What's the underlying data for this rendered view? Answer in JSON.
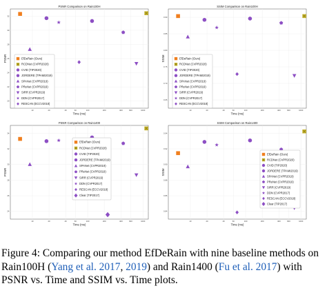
{
  "figure": {
    "caption": {
      "p1": "Figure 4: Comparing our method EfDeRain with nine baseline methods on Rain100H (",
      "c1": "Yang et al. 2017",
      "p2": ", ",
      "c2": "2019",
      "p3": ") and Rain1400 (",
      "c3": "Fu et al. 2017",
      "p4": ") with PSNR vs. Time and SSIM vs. Time plots."
    }
  },
  "chart_data": [
    {
      "type": "scatter",
      "title": "PSNR Comparison on Rain100H",
      "xlabel": "Time (ms)",
      "ylabel": "PSNR",
      "x_scale": "log",
      "legend_position": "lower-left",
      "x_ticks": [
        "10",
        "20",
        "40",
        "60",
        "100",
        "200",
        "400",
        "600",
        "1000"
      ],
      "y_ticks": [
        "20",
        "22",
        "24",
        "26",
        "28",
        "30",
        "32"
      ],
      "ylim": [
        19,
        33
      ],
      "series": [
        {
          "name": "EfDeRain (Ours)",
          "color": "#f07f1f",
          "marker": "square",
          "x": 6,
          "y": 32.3
        },
        {
          "name": "RCDNet (CVPR2020)",
          "color": "#c5b42f",
          "marker": "x-square",
          "x": 1150,
          "y": 32.4
        },
        {
          "name": "CVID (TIP2020)",
          "color": "#8d4fc4",
          "marker": "circle",
          "x": 18,
          "y": 31.7
        },
        {
          "name": "JORDERE (TPAMI2019)",
          "color": "#8d4fc4",
          "marker": "circle",
          "x": 120,
          "y": 31.3
        },
        {
          "name": "SPANet (CVPR2019)",
          "color": "#8d4fc4",
          "marker": "triangle",
          "x": 9,
          "y": 27.3
        },
        {
          "name": "PReNet (CVPR2019)",
          "color": "#8d4fc4",
          "marker": "pentagon",
          "x": 440,
          "y": 29.7
        },
        {
          "name": "SIRR (CVPR2019)",
          "color": "#8d4fc4",
          "marker": "triangle-down",
          "x": 760,
          "y": 25.3
        },
        {
          "name": "DDN (CVPR2017)",
          "color": "#8d4fc4",
          "marker": "star",
          "x": 30,
          "y": 31.1
        },
        {
          "name": "RESCAN (ECCV2018)",
          "color": "#8d4fc4",
          "marker": "diamond",
          "x": 70,
          "y": 25.5
        }
      ]
    },
    {
      "type": "scatter",
      "title": "SSIM Comparison on Rain100H",
      "xlabel": "Time (ms)",
      "ylabel": "SSIM",
      "x_scale": "log",
      "legend_position": "lower-left",
      "x_ticks": [
        "10",
        "20",
        "40",
        "60",
        "100",
        "200",
        "400",
        "600",
        "1000"
      ],
      "y_ticks": [
        "0.65",
        "0.70",
        "0.75",
        "0.80",
        "0.85",
        "0.90"
      ],
      "ylim": [
        0.6,
        0.92
      ],
      "series": [
        {
          "name": "EfDeRain (Ours)",
          "color": "#f07f1f",
          "marker": "square",
          "x": 6,
          "y": 0.897
        },
        {
          "name": "RCDNet (CVPR2020)",
          "color": "#c5b42f",
          "marker": "x-square",
          "x": 1150,
          "y": 0.897
        },
        {
          "name": "CVID (TIP2020)",
          "color": "#8d4fc4",
          "marker": "circle",
          "x": 18,
          "y": 0.885
        },
        {
          "name": "JORDERE (TPAMI2019)",
          "color": "#8d4fc4",
          "marker": "circle",
          "x": 120,
          "y": 0.889
        },
        {
          "name": "SPANet (CVPR2019)",
          "color": "#8d4fc4",
          "marker": "triangle",
          "x": 9,
          "y": 0.83
        },
        {
          "name": "PReNet (CVPR2019)",
          "color": "#8d4fc4",
          "marker": "pentagon",
          "x": 440,
          "y": 0.875
        },
        {
          "name": "SIRR (CVPR2019)",
          "color": "#8d4fc4",
          "marker": "triangle-down",
          "x": 760,
          "y": 0.705
        },
        {
          "name": "DDN (CVPR2017)",
          "color": "#8d4fc4",
          "marker": "star",
          "x": 30,
          "y": 0.86
        },
        {
          "name": "RESCAN (ECCV2018)",
          "color": "#8d4fc4",
          "marker": "diamond",
          "x": 70,
          "y": 0.71
        }
      ]
    },
    {
      "type": "scatter",
      "title": "PSNR Comparison on Rain1400",
      "xlabel": "Time (ms)",
      "ylabel": "PSNR",
      "x_scale": "log",
      "legend_position": "center",
      "x_ticks": [
        "10",
        "20",
        "40",
        "60",
        "100",
        "200",
        "400",
        "600",
        "1000"
      ],
      "y_ticks": [
        "24",
        "26",
        "28",
        "30",
        "32",
        "34"
      ],
      "ylim": [
        22.5,
        35
      ],
      "series": [
        {
          "name": "EfDeRain (Ours)",
          "color": "#f07f1f",
          "marker": "square",
          "x": 6,
          "y": 33.2
        },
        {
          "name": "RCDNet (CVPR2020)",
          "color": "#c5b42f",
          "marker": "x-square",
          "x": 1150,
          "y": 34.6
        },
        {
          "name": "CVID (TIP2020)",
          "color": "#8d4fc4",
          "marker": "circle",
          "x": 18,
          "y": 32.9
        },
        {
          "name": "JORDERE (TPAMI2019)",
          "color": "#8d4fc4",
          "marker": "circle",
          "x": 120,
          "y": 33.4
        },
        {
          "name": "SPANet (CVPR2019)",
          "color": "#8d4fc4",
          "marker": "triangle",
          "x": 9,
          "y": 29.8
        },
        {
          "name": "PReNet (CVPR2019)",
          "color": "#8d4fc4",
          "marker": "pentagon",
          "x": 440,
          "y": 32.6
        },
        {
          "name": "SIRR (CVPR2019)",
          "color": "#8d4fc4",
          "marker": "triangle-down",
          "x": 760,
          "y": 28.4
        },
        {
          "name": "DDN (CVPR2017)",
          "color": "#8d4fc4",
          "marker": "star",
          "x": 30,
          "y": 33.0
        },
        {
          "name": "RESCAN (ECCV2018)",
          "color": "#8d4fc4",
          "marker": "diamond",
          "x": 70,
          "y": 27.3
        },
        {
          "name": "Clear (TIP2017)",
          "color": "#8d4fc4",
          "marker": "big-diamond",
          "x": 230,
          "y": 23.1
        }
      ]
    },
    {
      "type": "scatter",
      "title": "SSIM Comparison on Rain1400",
      "xlabel": "Time (ms)",
      "ylabel": "SSIM",
      "x_scale": "log",
      "legend_position": "upper-right",
      "x_ticks": [
        "10",
        "20",
        "40",
        "60",
        "100",
        "200",
        "400",
        "600",
        "1000"
      ],
      "y_ticks": [
        "0.84",
        "0.86",
        "0.88",
        "0.90",
        "0.92",
        "0.94"
      ],
      "ylim": [
        0.825,
        0.95
      ],
      "series": [
        {
          "name": "EfDeRain (Ours)",
          "color": "#f07f1f",
          "marker": "square",
          "x": 6,
          "y": 0.913
        },
        {
          "name": "RCDNet (CVPR2020)",
          "color": "#c5b42f",
          "marker": "x-square",
          "x": 1150,
          "y": 0.942
        },
        {
          "name": "CVID (TIP2020)",
          "color": "#8d4fc4",
          "marker": "circle",
          "x": 18,
          "y": 0.928
        },
        {
          "name": "JORDERE (TPAMI2019)",
          "color": "#8d4fc4",
          "marker": "circle",
          "x": 120,
          "y": 0.93
        },
        {
          "name": "SPANet (CVPR2019)",
          "color": "#8d4fc4",
          "marker": "triangle",
          "x": 9,
          "y": 0.895
        },
        {
          "name": "PReNet (CVPR2019)",
          "color": "#8d4fc4",
          "marker": "pentagon",
          "x": 440,
          "y": 0.918
        },
        {
          "name": "SIRR (CVPR2019)",
          "color": "#8d4fc4",
          "marker": "triangle-down",
          "x": 760,
          "y": 0.84
        },
        {
          "name": "DDN (CVPR2017)",
          "color": "#8d4fc4",
          "marker": "star",
          "x": 30,
          "y": 0.924
        },
        {
          "name": "RESCAN (ECCV2018)",
          "color": "#8d4fc4",
          "marker": "diamond",
          "x": 70,
          "y": 0.834
        },
        {
          "name": "Clear (TIP2017)",
          "color": "#8d4fc4",
          "marker": "big-diamond",
          "x": 230,
          "y": 0.855
        }
      ]
    }
  ]
}
